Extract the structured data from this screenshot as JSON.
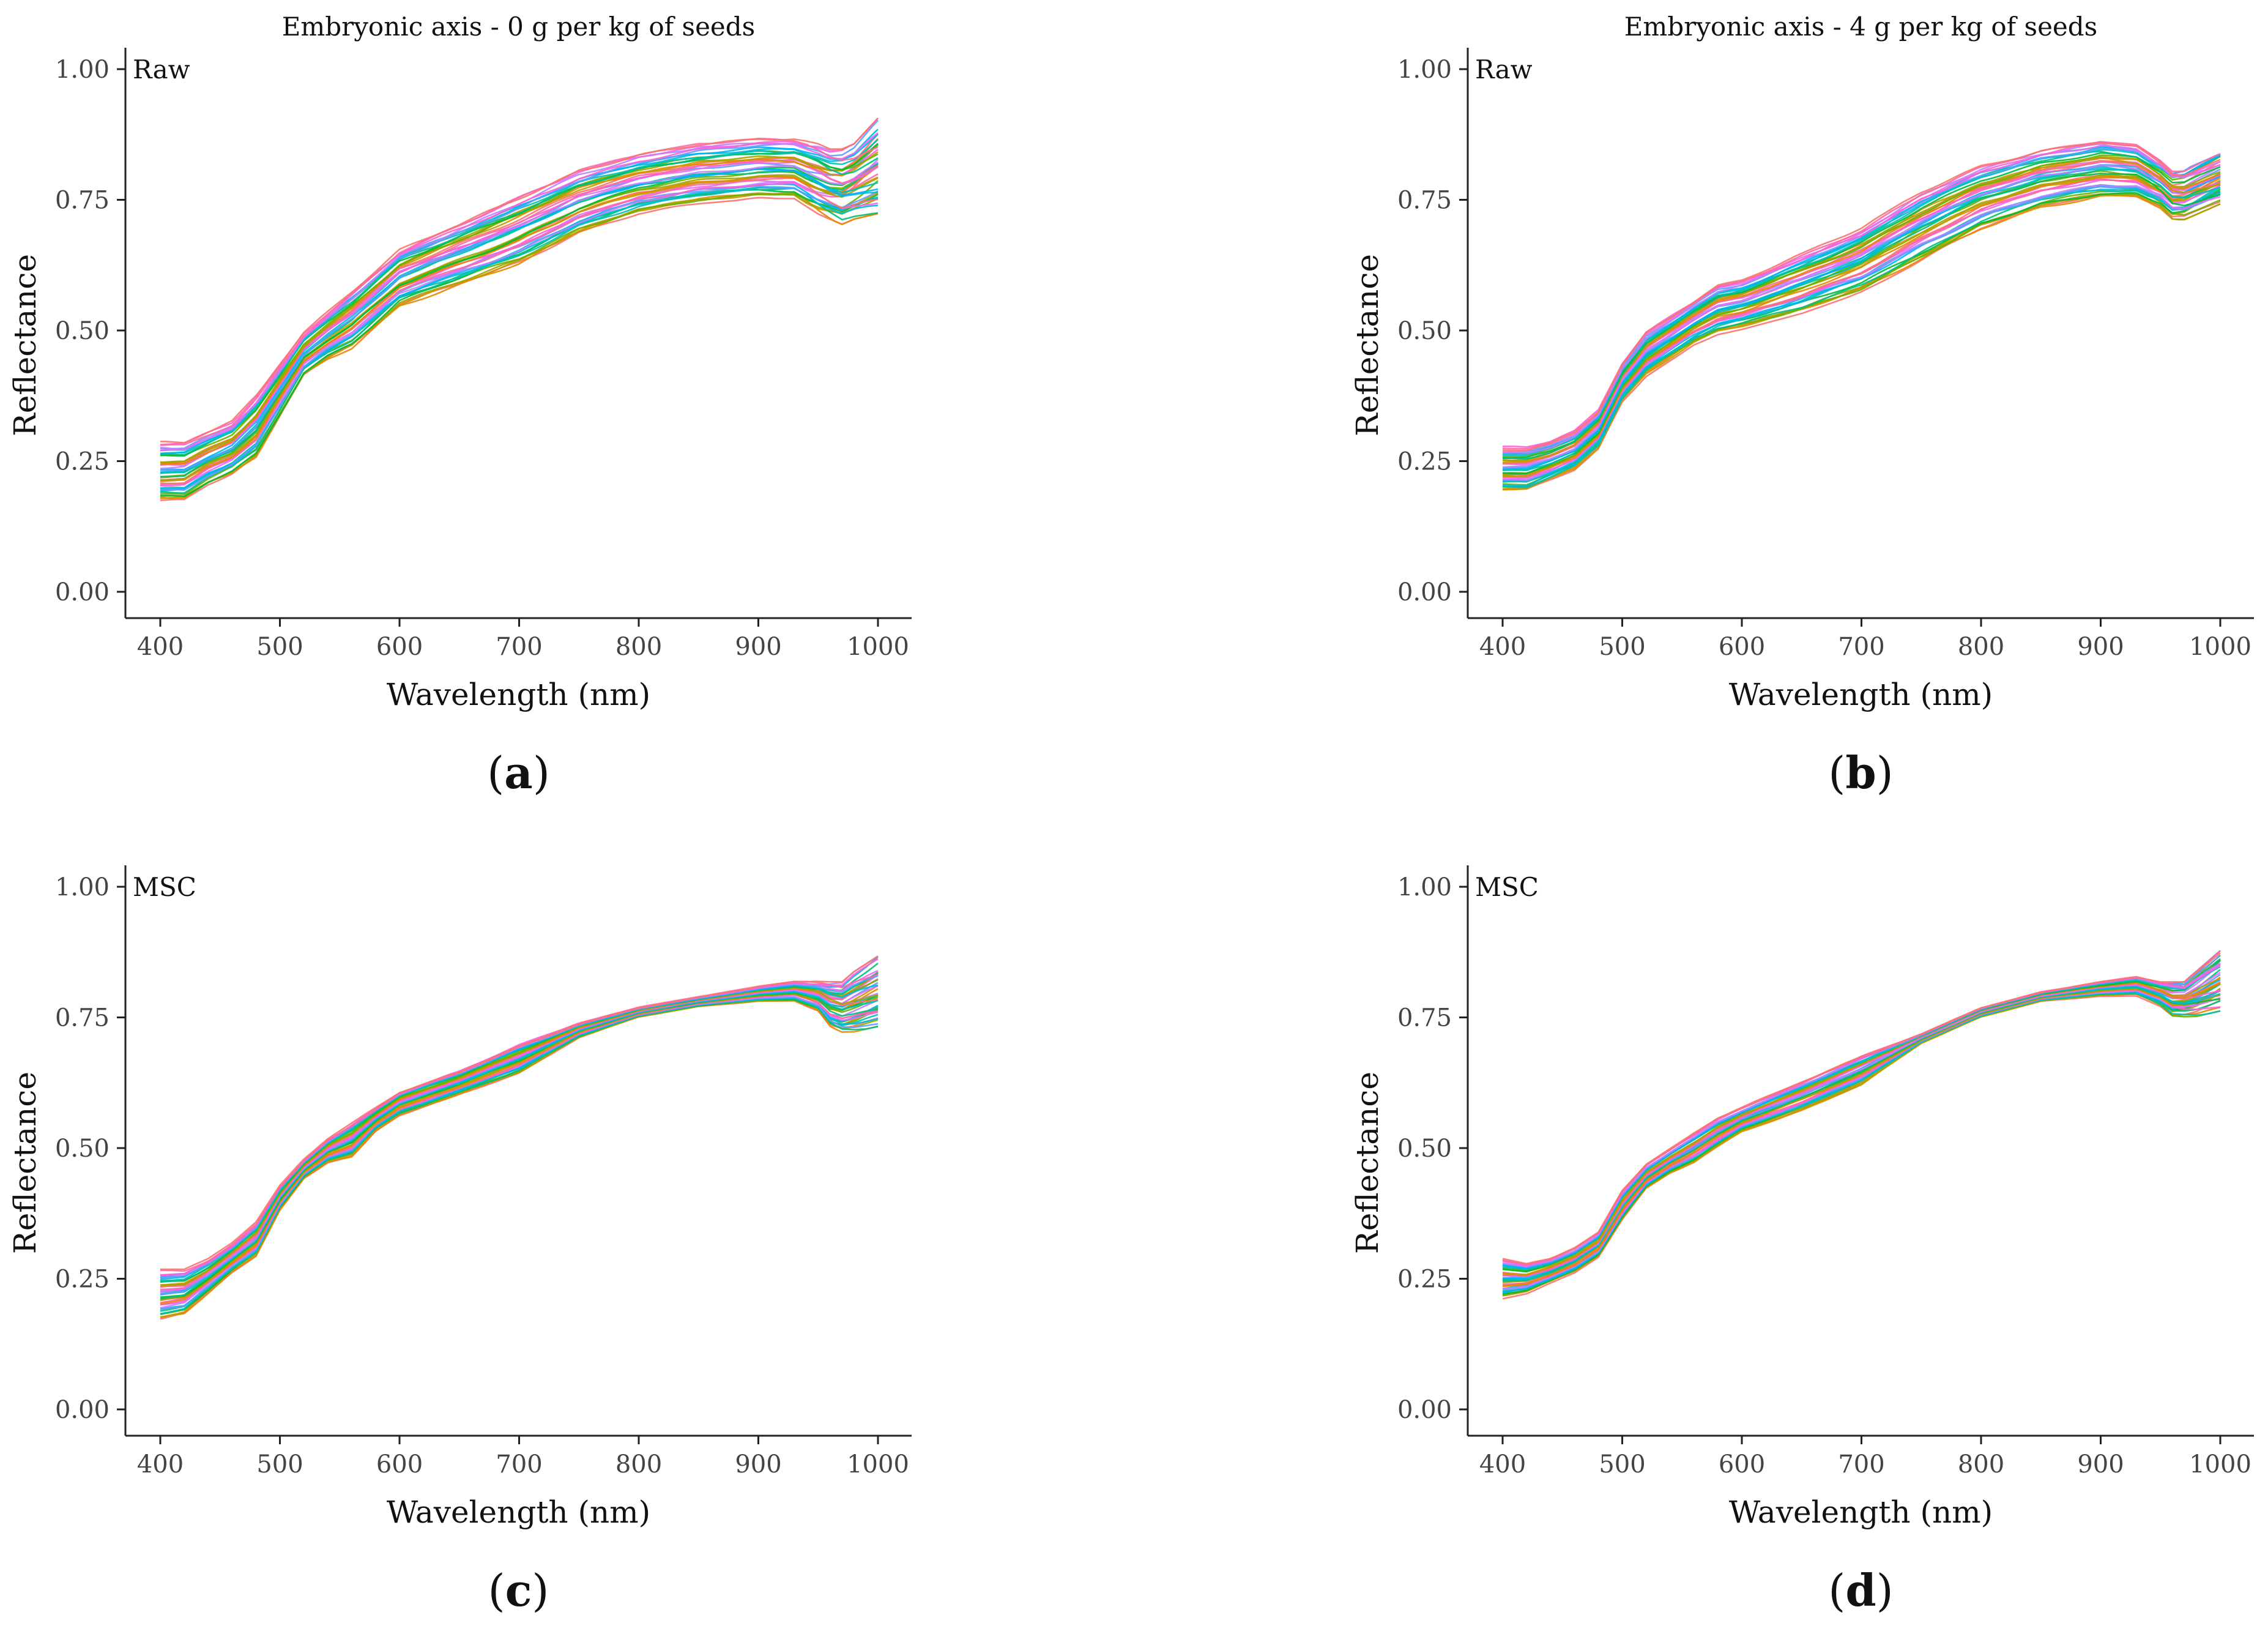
{
  "chart_data": [
    {
      "type": "line",
      "panel": "a",
      "caption_letter": "a",
      "title": "Embryonic axis - 0 g per kg of seeds",
      "tag": "Raw",
      "xlabel": "Wavelength (nm)",
      "ylabel": "Reflectance",
      "xlim": [
        400,
        1000
      ],
      "ylim": [
        0,
        1
      ],
      "xticks": [
        400,
        500,
        600,
        700,
        800,
        900,
        1000
      ],
      "yticks": [
        "0.00",
        "0.25",
        "0.50",
        "0.75",
        "1.00"
      ],
      "grid": false,
      "x": [
        400,
        420,
        440,
        460,
        480,
        500,
        520,
        540,
        560,
        580,
        600,
        650,
        700,
        750,
        800,
        850,
        900,
        930,
        950,
        960,
        970,
        980,
        1000
      ],
      "envelope_low": [
        0.17,
        0.17,
        0.2,
        0.22,
        0.25,
        0.33,
        0.41,
        0.44,
        0.46,
        0.5,
        0.54,
        0.58,
        0.62,
        0.68,
        0.72,
        0.74,
        0.75,
        0.75,
        0.72,
        0.71,
        0.7,
        0.71,
        0.72
      ],
      "envelope_high": [
        0.29,
        0.29,
        0.31,
        0.33,
        0.38,
        0.44,
        0.5,
        0.54,
        0.58,
        0.62,
        0.66,
        0.71,
        0.76,
        0.81,
        0.84,
        0.86,
        0.87,
        0.87,
        0.86,
        0.85,
        0.85,
        0.86,
        0.91
      ],
      "curve_count": 46
    },
    {
      "type": "line",
      "panel": "b",
      "caption_letter": "b",
      "title": "Embryonic axis - 4 g per kg of seeds",
      "tag": "Raw",
      "xlabel": "Wavelength (nm)",
      "ylabel": "Reflectance",
      "xlim": [
        400,
        1000
      ],
      "ylim": [
        0,
        1
      ],
      "xticks": [
        400,
        500,
        600,
        700,
        800,
        900,
        1000
      ],
      "yticks": [
        "0.00",
        "0.25",
        "0.50",
        "0.75",
        "1.00"
      ],
      "grid": false,
      "x": [
        400,
        420,
        440,
        460,
        480,
        500,
        520,
        540,
        560,
        580,
        600,
        650,
        700,
        750,
        800,
        850,
        900,
        930,
        950,
        960,
        970,
        980,
        1000
      ],
      "envelope_low": [
        0.19,
        0.19,
        0.21,
        0.23,
        0.27,
        0.36,
        0.41,
        0.44,
        0.47,
        0.49,
        0.5,
        0.53,
        0.57,
        0.63,
        0.69,
        0.73,
        0.75,
        0.75,
        0.73,
        0.71,
        0.71,
        0.72,
        0.74
      ],
      "envelope_high": [
        0.28,
        0.28,
        0.29,
        0.31,
        0.35,
        0.44,
        0.5,
        0.53,
        0.56,
        0.59,
        0.6,
        0.65,
        0.7,
        0.77,
        0.82,
        0.85,
        0.87,
        0.86,
        0.83,
        0.81,
        0.81,
        0.82,
        0.84
      ],
      "curve_count": 46
    },
    {
      "type": "line",
      "panel": "c",
      "caption_letter": "c",
      "title": "",
      "tag": "MSC",
      "xlabel": "Wavelength (nm)",
      "ylabel": "Reflectance",
      "xlim": [
        400,
        1000
      ],
      "ylim": [
        0,
        1
      ],
      "xticks": [
        400,
        500,
        600,
        700,
        800,
        900,
        1000
      ],
      "yticks": [
        "0.00",
        "0.25",
        "0.50",
        "0.75",
        "1.00"
      ],
      "grid": false,
      "x": [
        400,
        420,
        440,
        460,
        480,
        500,
        520,
        540,
        560,
        580,
        600,
        650,
        700,
        750,
        800,
        850,
        900,
        930,
        950,
        960,
        970,
        980,
        1000
      ],
      "envelope_low": [
        0.17,
        0.18,
        0.22,
        0.26,
        0.29,
        0.38,
        0.44,
        0.47,
        0.48,
        0.53,
        0.56,
        0.6,
        0.64,
        0.71,
        0.75,
        0.77,
        0.78,
        0.78,
        0.76,
        0.73,
        0.72,
        0.72,
        0.73
      ],
      "envelope_high": [
        0.27,
        0.27,
        0.29,
        0.32,
        0.36,
        0.43,
        0.48,
        0.52,
        0.55,
        0.58,
        0.61,
        0.65,
        0.7,
        0.74,
        0.77,
        0.79,
        0.81,
        0.82,
        0.82,
        0.82,
        0.82,
        0.84,
        0.87
      ],
      "curve_count": 46
    },
    {
      "type": "line",
      "panel": "d",
      "caption_letter": "d",
      "title": "",
      "tag": "MSC",
      "xlabel": "Wavelength (nm)",
      "ylabel": "Reflectance",
      "xlim": [
        400,
        1000
      ],
      "ylim": [
        0,
        1
      ],
      "xticks": [
        400,
        500,
        600,
        700,
        800,
        900,
        1000
      ],
      "yticks": [
        "0.00",
        "0.25",
        "0.50",
        "0.75",
        "1.00"
      ],
      "grid": false,
      "x": [
        400,
        420,
        440,
        460,
        480,
        500,
        520,
        540,
        560,
        580,
        600,
        650,
        700,
        750,
        800,
        850,
        900,
        930,
        950,
        960,
        970,
        980,
        1000
      ],
      "envelope_low": [
        0.21,
        0.22,
        0.24,
        0.26,
        0.29,
        0.36,
        0.42,
        0.45,
        0.47,
        0.5,
        0.53,
        0.57,
        0.62,
        0.7,
        0.75,
        0.78,
        0.79,
        0.79,
        0.77,
        0.75,
        0.75,
        0.75,
        0.76
      ],
      "envelope_high": [
        0.29,
        0.28,
        0.29,
        0.31,
        0.34,
        0.42,
        0.47,
        0.5,
        0.53,
        0.56,
        0.58,
        0.63,
        0.68,
        0.72,
        0.77,
        0.8,
        0.82,
        0.83,
        0.82,
        0.82,
        0.82,
        0.84,
        0.88
      ],
      "curve_count": 46
    }
  ],
  "palette": [
    "#F8766D",
    "#E58700",
    "#C99800",
    "#A3A500",
    "#6BB100",
    "#00BA38",
    "#00BF7D",
    "#00C0AF",
    "#00BCD8",
    "#00B0F6",
    "#619CFF",
    "#B983FF",
    "#E76BF3",
    "#FD61D1",
    "#FF67A4"
  ]
}
